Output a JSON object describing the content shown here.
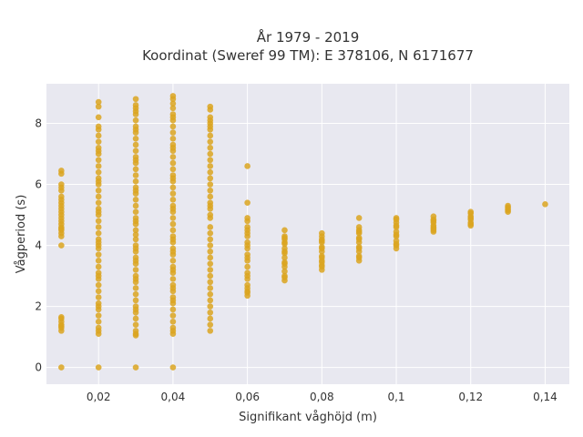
{
  "chart_data": {
    "type": "scatter",
    "title_lines": [
      "År 1979 - 2019",
      "Koordinat (Sweref 99 TM): E 378106, N 6171677"
    ],
    "xlabel": "Signifikant våghöjd (m)",
    "ylabel": "Vågperiod (s)",
    "xlim": [
      0.006,
      0.1465
    ],
    "ylim": [
      -0.55,
      9.3
    ],
    "x_ticks": [
      0.02,
      0.04,
      0.06,
      0.08,
      0.1,
      0.12,
      0.14
    ],
    "x_tick_labels": [
      "0,02",
      "0,04",
      "0,06",
      "0,08",
      "0,1",
      "0,12",
      "0,14"
    ],
    "y_ticks": [
      0,
      2,
      4,
      6,
      8
    ],
    "y_tick_labels": [
      "0",
      "2",
      "4",
      "6",
      "8"
    ],
    "grid": true,
    "legend": "none",
    "colors": {
      "marker": "#DAA520",
      "plot_background": "#E8E8F0",
      "grid": "#ffffff"
    },
    "series": [
      {
        "x": [
          0.01,
          0.01,
          0.01,
          0.01,
          0.01,
          0.01,
          0.01,
          0.01,
          0.01,
          0.01,
          0.01,
          0.01,
          0.01,
          0.01,
          0.01,
          0.01,
          0.01,
          0.01,
          0.01,
          0.01,
          0.01,
          0.01,
          0.01,
          0.01,
          0.01,
          0.01,
          0.01,
          0.01,
          0.01,
          0.02,
          0.02,
          0.02,
          0.02,
          0.02,
          0.02,
          0.02,
          0.02,
          0.02,
          0.02,
          0.02,
          0.02,
          0.02,
          0.02,
          0.02,
          0.02,
          0.02,
          0.02,
          0.02,
          0.02,
          0.02,
          0.02,
          0.02,
          0.02,
          0.02,
          0.02,
          0.02,
          0.02,
          0.02,
          0.02,
          0.02,
          0.02,
          0.02,
          0.02,
          0.02,
          0.02,
          0.02,
          0.02,
          0.02,
          0.02,
          0.02,
          0.02,
          0.02,
          0.02,
          0.02,
          0.02,
          0.02,
          0.03,
          0.03,
          0.03,
          0.03,
          0.03,
          0.03,
          0.03,
          0.03,
          0.03,
          0.03,
          0.03,
          0.03,
          0.03,
          0.03,
          0.03,
          0.03,
          0.03,
          0.03,
          0.03,
          0.03,
          0.03,
          0.03,
          0.03,
          0.03,
          0.03,
          0.03,
          0.03,
          0.03,
          0.03,
          0.03,
          0.03,
          0.03,
          0.03,
          0.03,
          0.03,
          0.03,
          0.03,
          0.03,
          0.03,
          0.03,
          0.03,
          0.03,
          0.03,
          0.03,
          0.03,
          0.03,
          0.03,
          0.03,
          0.03,
          0.03,
          0.03,
          0.03,
          0.04,
          0.04,
          0.04,
          0.04,
          0.04,
          0.04,
          0.04,
          0.04,
          0.04,
          0.04,
          0.04,
          0.04,
          0.04,
          0.04,
          0.04,
          0.04,
          0.04,
          0.04,
          0.04,
          0.04,
          0.04,
          0.04,
          0.04,
          0.04,
          0.04,
          0.04,
          0.04,
          0.04,
          0.04,
          0.04,
          0.04,
          0.04,
          0.04,
          0.04,
          0.04,
          0.04,
          0.04,
          0.04,
          0.04,
          0.04,
          0.04,
          0.04,
          0.04,
          0.04,
          0.04,
          0.04,
          0.04,
          0.04,
          0.04,
          0.04,
          0.04,
          0.04,
          0.05,
          0.05,
          0.05,
          0.05,
          0.05,
          0.05,
          0.05,
          0.05,
          0.05,
          0.05,
          0.05,
          0.05,
          0.05,
          0.05,
          0.05,
          0.05,
          0.05,
          0.05,
          0.05,
          0.05,
          0.05,
          0.05,
          0.05,
          0.05,
          0.05,
          0.05,
          0.05,
          0.05,
          0.05,
          0.05,
          0.05,
          0.05,
          0.05,
          0.05,
          0.05,
          0.05,
          0.05,
          0.05,
          0.05,
          0.05,
          0.05,
          0.06,
          0.06,
          0.06,
          0.06,
          0.06,
          0.06,
          0.06,
          0.06,
          0.06,
          0.06,
          0.06,
          0.06,
          0.06,
          0.06,
          0.06,
          0.06,
          0.06,
          0.06,
          0.06,
          0.06,
          0.06,
          0.06,
          0.06,
          0.07,
          0.07,
          0.07,
          0.07,
          0.07,
          0.07,
          0.07,
          0.07,
          0.07,
          0.07,
          0.07,
          0.07,
          0.07,
          0.07,
          0.07,
          0.07,
          0.07,
          0.08,
          0.08,
          0.08,
          0.08,
          0.08,
          0.08,
          0.08,
          0.08,
          0.08,
          0.08,
          0.08,
          0.08,
          0.08,
          0.08,
          0.08,
          0.09,
          0.09,
          0.09,
          0.09,
          0.09,
          0.09,
          0.09,
          0.09,
          0.09,
          0.09,
          0.09,
          0.09,
          0.09,
          0.09,
          0.1,
          0.1,
          0.1,
          0.1,
          0.1,
          0.1,
          0.1,
          0.1,
          0.1,
          0.1,
          0.1,
          0.1,
          0.11,
          0.11,
          0.11,
          0.11,
          0.11,
          0.11,
          0.11,
          0.11,
          0.11,
          0.12,
          0.12,
          0.12,
          0.12,
          0.12,
          0.12,
          0.12,
          0.12,
          0.13,
          0.13,
          0.13,
          0.13,
          0.13,
          0.14
        ],
        "y": [
          0.0,
          1.2,
          1.3,
          1.4,
          1.5,
          1.6,
          1.65,
          4.0,
          4.3,
          4.4,
          4.5,
          4.6,
          4.7,
          4.8,
          4.9,
          5.0,
          5.1,
          5.2,
          5.3,
          5.4,
          5.5,
          5.6,
          5.8,
          5.9,
          6.0,
          6.35,
          6.45,
          1.35,
          4.55,
          0.0,
          1.1,
          1.3,
          1.5,
          1.7,
          1.9,
          2.1,
          2.3,
          2.5,
          2.7,
          2.9,
          3.1,
          3.3,
          3.5,
          3.7,
          3.9,
          4.0,
          4.2,
          4.4,
          4.6,
          4.8,
          5.0,
          5.2,
          5.4,
          5.6,
          5.8,
          6.0,
          6.2,
          6.4,
          6.6,
          6.8,
          7.0,
          7.2,
          7.4,
          7.6,
          7.8,
          7.9,
          8.2,
          8.55,
          8.7,
          1.2,
          2.0,
          3.0,
          4.1,
          5.1,
          6.1,
          7.1,
          0.0,
          1.05,
          1.2,
          1.4,
          1.6,
          1.8,
          2.0,
          2.2,
          2.4,
          2.6,
          2.8,
          3.0,
          3.2,
          3.4,
          3.6,
          3.8,
          4.0,
          4.2,
          4.35,
          4.5,
          4.7,
          4.9,
          5.1,
          5.3,
          5.5,
          5.7,
          5.9,
          6.1,
          6.3,
          6.5,
          6.7,
          6.9,
          7.1,
          7.3,
          7.5,
          7.7,
          7.9,
          8.1,
          8.3,
          8.5,
          8.6,
          8.8,
          1.1,
          1.9,
          2.9,
          3.9,
          4.8,
          5.8,
          6.8,
          7.8,
          8.4,
          3.5,
          0.0,
          1.1,
          1.3,
          1.5,
          1.7,
          1.9,
          2.1,
          2.3,
          2.5,
          2.7,
          2.9,
          3.1,
          3.3,
          3.5,
          3.7,
          3.9,
          4.1,
          4.3,
          4.5,
          4.7,
          4.9,
          5.1,
          5.3,
          5.5,
          5.7,
          5.9,
          6.1,
          6.3,
          6.5,
          6.7,
          6.9,
          7.1,
          7.3,
          7.5,
          7.7,
          7.9,
          8.1,
          8.3,
          8.5,
          8.65,
          8.8,
          8.9,
          1.2,
          2.2,
          3.2,
          4.2,
          5.2,
          6.2,
          7.2,
          8.2,
          3.8,
          2.6,
          1.2,
          1.4,
          1.6,
          1.8,
          2.0,
          2.2,
          2.4,
          2.6,
          2.8,
          3.0,
          3.2,
          3.4,
          3.6,
          3.8,
          4.0,
          4.2,
          4.4,
          4.6,
          4.9,
          5.0,
          5.2,
          5.4,
          5.6,
          5.8,
          6.0,
          6.2,
          6.4,
          6.6,
          6.8,
          7.0,
          7.2,
          7.4,
          7.6,
          7.8,
          7.9,
          8.0,
          8.1,
          8.2,
          8.45,
          8.55,
          5.3,
          2.35,
          2.5,
          2.7,
          2.9,
          3.1,
          3.3,
          3.5,
          3.7,
          3.9,
          4.1,
          4.3,
          4.5,
          4.6,
          4.8,
          4.9,
          5.4,
          6.6,
          2.45,
          3.0,
          3.6,
          4.0,
          4.4,
          2.6,
          2.85,
          3.0,
          3.15,
          3.3,
          3.45,
          3.6,
          3.75,
          3.9,
          4.05,
          4.2,
          4.3,
          4.5,
          2.95,
          3.4,
          3.8,
          4.1,
          4.25,
          3.2,
          3.35,
          3.5,
          3.65,
          3.8,
          3.95,
          4.1,
          4.2,
          4.3,
          4.4,
          3.3,
          3.6,
          3.9,
          4.15,
          3.45,
          3.5,
          3.65,
          3.8,
          3.95,
          4.1,
          4.25,
          4.4,
          4.5,
          4.6,
          4.9,
          3.6,
          3.9,
          4.2,
          4.45,
          3.9,
          4.0,
          4.15,
          4.3,
          4.45,
          4.6,
          4.75,
          4.9,
          4.05,
          4.35,
          4.65,
          4.85,
          4.45,
          4.55,
          4.65,
          4.75,
          4.85,
          4.95,
          4.6,
          4.8,
          4.5,
          4.65,
          4.75,
          4.85,
          4.95,
          5.05,
          5.1,
          4.7,
          4.9,
          5.1,
          5.15,
          5.2,
          5.25,
          5.3,
          5.35
        ]
      }
    ]
  }
}
